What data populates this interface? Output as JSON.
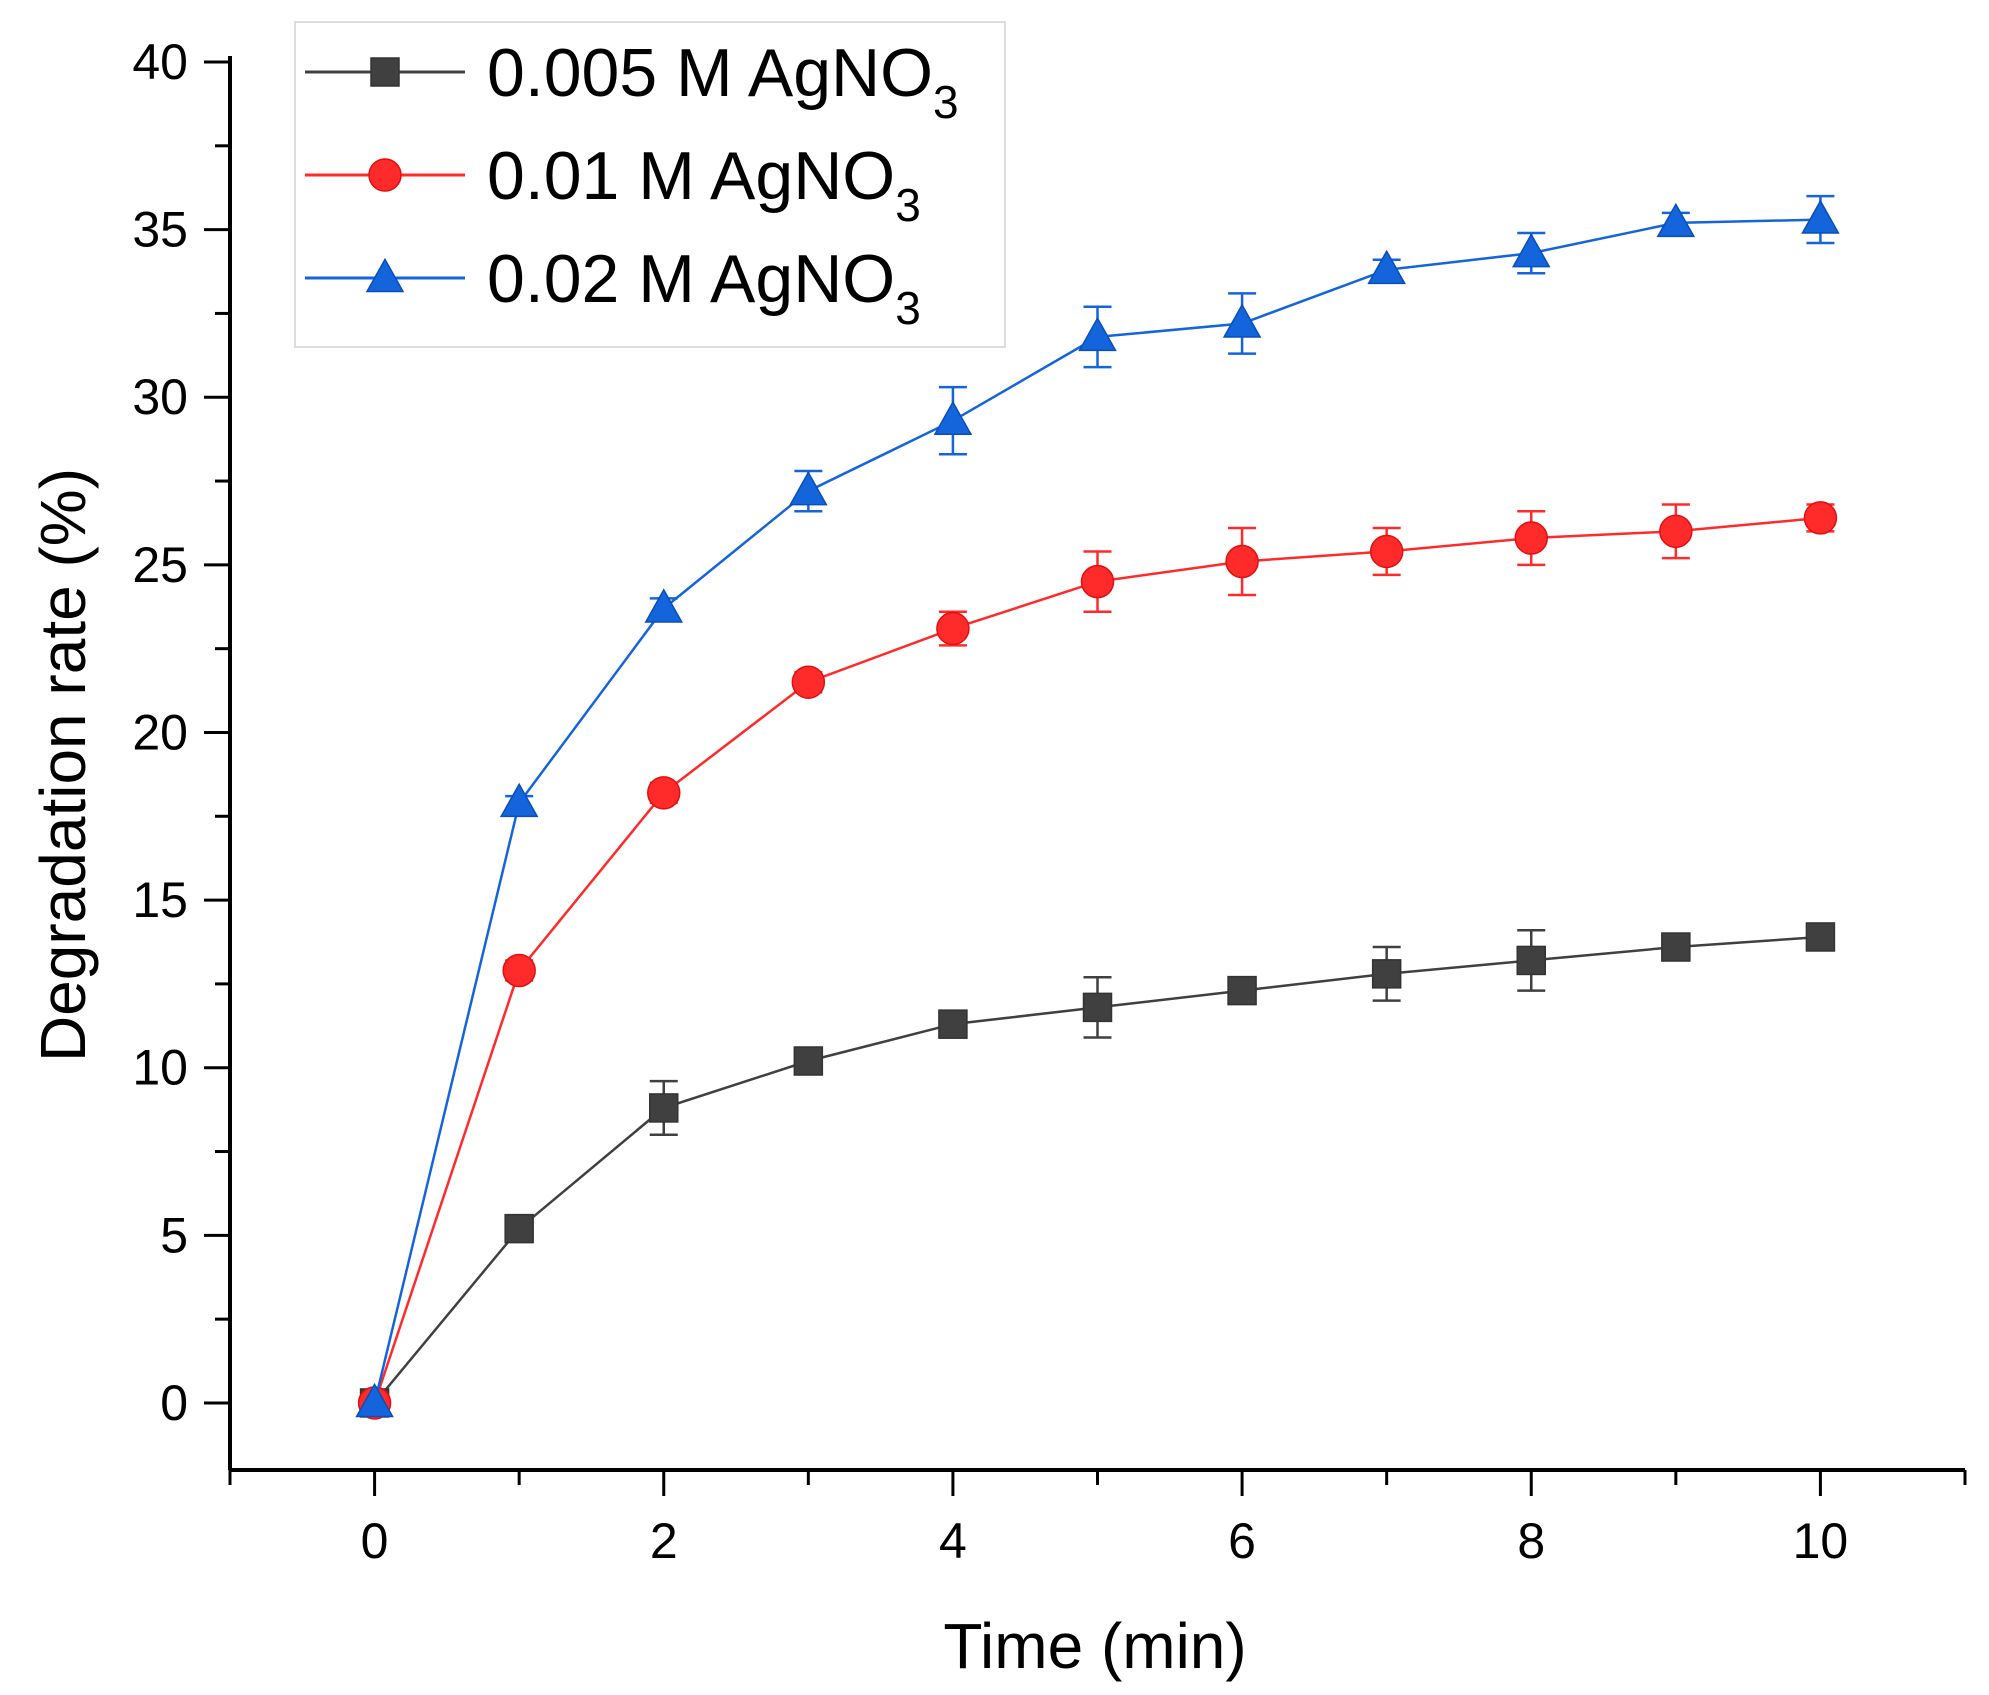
{
  "chart_data": {
    "type": "line",
    "title": "",
    "xlabel": "Time (min)",
    "ylabel": "Degradation rate (%)",
    "xlim": [
      -1,
      11
    ],
    "ylim": [
      -2,
      40
    ],
    "xticks": [
      0,
      2,
      4,
      6,
      8,
      10
    ],
    "yticks": [
      0,
      5,
      10,
      15,
      20,
      25,
      30,
      35,
      40
    ],
    "x": [
      0,
      1,
      2,
      3,
      4,
      5,
      6,
      7,
      8,
      9,
      10
    ],
    "legend_position": "top-left",
    "series": [
      {
        "name": "0.005 M AgNO",
        "name_subscript": "3",
        "color": "#404040",
        "marker": "square",
        "values": [
          0,
          5.2,
          8.8,
          10.2,
          11.3,
          11.8,
          12.3,
          12.8,
          13.2,
          13.6,
          13.9
        ],
        "errors": [
          0,
          0.2,
          0.8,
          0.3,
          0.4,
          0.9,
          0.3,
          0.8,
          0.9,
          0.3,
          0.3
        ]
      },
      {
        "name": "0.01 M AgNO",
        "name_subscript": "3",
        "color": "#ff2a2a",
        "marker": "circle",
        "values": [
          0,
          12.9,
          18.2,
          21.5,
          23.1,
          24.5,
          25.1,
          25.4,
          25.8,
          26.0,
          26.4
        ],
        "errors": [
          0,
          0.3,
          0.3,
          0.3,
          0.5,
          0.9,
          1.0,
          0.7,
          0.8,
          0.8,
          0.4
        ]
      },
      {
        "name": "0.02 M AgNO",
        "name_subscript": "3",
        "color": "#1464dc",
        "marker": "triangle",
        "values": [
          0,
          17.9,
          23.7,
          27.2,
          29.3,
          31.8,
          32.2,
          33.8,
          34.3,
          35.2,
          35.3
        ],
        "errors": [
          0,
          0.2,
          0.3,
          0.6,
          1.0,
          0.9,
          0.9,
          0.3,
          0.6,
          0.3,
          0.7
        ]
      }
    ]
  }
}
